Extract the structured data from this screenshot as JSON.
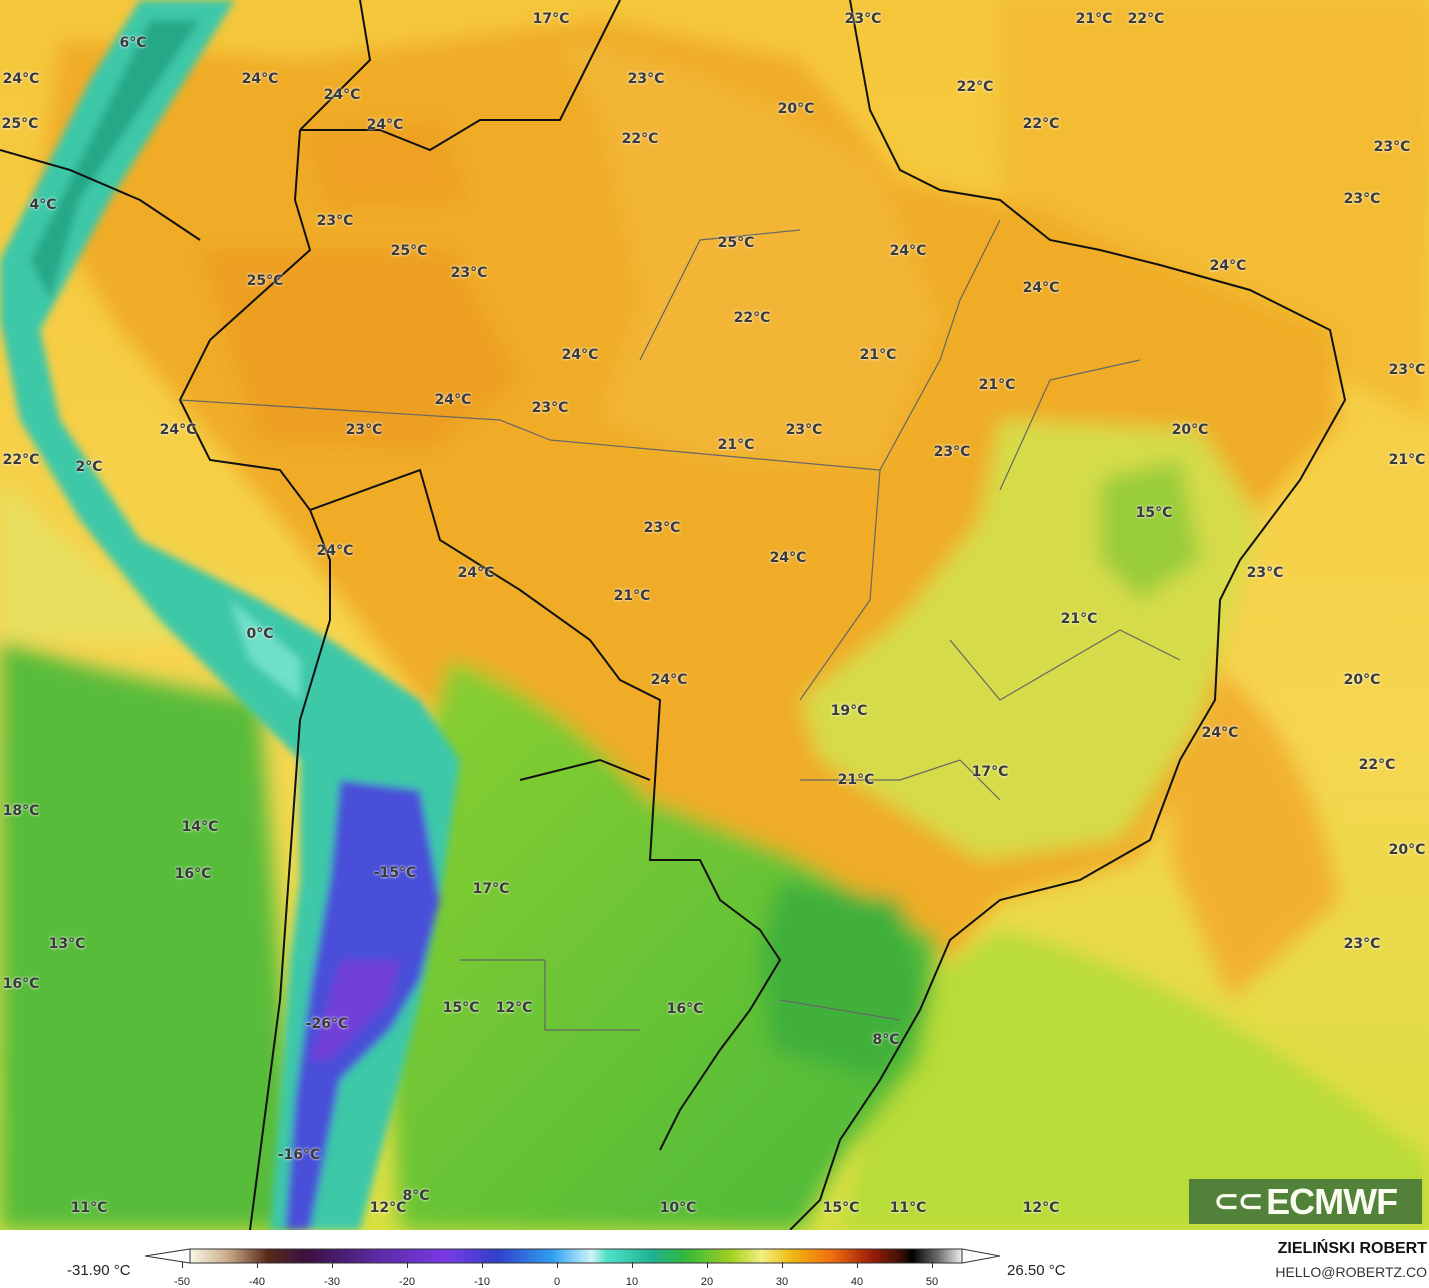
{
  "map": {
    "variable": "temperature",
    "labels": [
      "17°C",
      "23°C",
      "21°C",
      "22°C",
      "6°C",
      "24°C",
      "24°C",
      "23°C",
      "24°C",
      "22°C",
      "20°C",
      "25°C",
      "24°C",
      "22°C",
      "22°C",
      "23°C",
      "23°C",
      "4°C",
      "23°C",
      "25°C",
      "24°C",
      "25°C",
      "25°C",
      "23°C",
      "24°C",
      "24°C",
      "22°C",
      "24°C",
      "21°C",
      "21°C",
      "23°C",
      "24°C",
      "23°C",
      "23°C",
      "24°C",
      "23°C",
      "20°C",
      "21°C",
      "23°C",
      "22°C",
      "2°C",
      "21°C",
      "15°C",
      "23°C",
      "24°C",
      "24°C",
      "23°C",
      "24°C",
      "21°C",
      "21°C",
      "0°C",
      "24°C",
      "20°C",
      "19°C",
      "24°C",
      "22°C",
      "17°C",
      "21°C",
      "18°C",
      "14°C",
      "20°C",
      "-15°C",
      "16°C",
      "17°C",
      "13°C",
      "23°C",
      "16°C",
      "15°C",
      "12°C",
      "16°C",
      "-26°C",
      "8°C",
      "-16°C",
      "8°C",
      "11°C",
      "12°C",
      "10°C",
      "15°C",
      "11°C",
      "12°C"
    ]
  },
  "logo": {
    "text": "ECMWF",
    "icon": "ecmwf-logo-icon"
  },
  "legend": {
    "min_label": "-31.90 °C",
    "max_label": "26.50 °C",
    "ticks": [
      "-50",
      "-40",
      "-30",
      "-20",
      "-10",
      "0",
      "10",
      "20",
      "30",
      "40",
      "50"
    ]
  },
  "credit": {
    "author": "ZIELIŃSKI ROBERT",
    "email": "HELLO@ROBERTZ.CO"
  },
  "colors": {
    "land_warm": "#f0ac28",
    "ocean": "#f6d24a",
    "cool": "#7cc832",
    "andes": "#3cc8a8",
    "cold": "#4a50d8"
  }
}
